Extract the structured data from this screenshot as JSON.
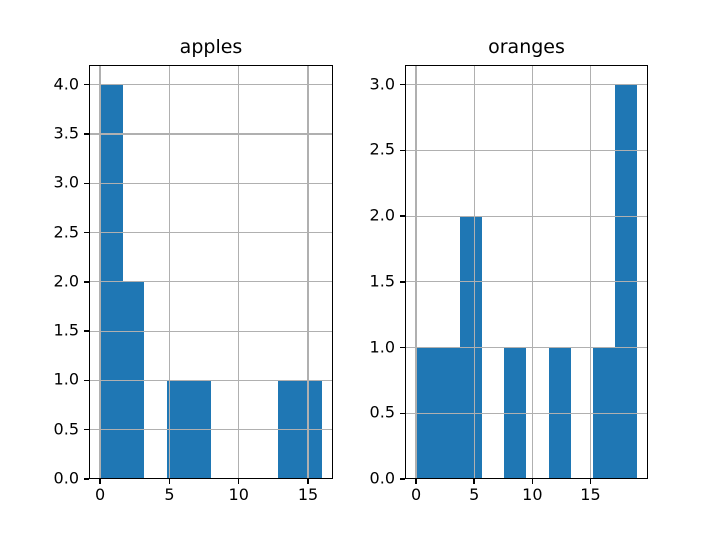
{
  "figure": {
    "background_color": "#ffffff",
    "text_color": "#000000"
  },
  "chart_data": [
    {
      "type": "bar",
      "subtype": "histogram",
      "title": "apples",
      "bin_edges": [
        0,
        1.6,
        3.2,
        4.8,
        6.4,
        8.0,
        9.6,
        11.2,
        12.8,
        14.4,
        16.0
      ],
      "counts": [
        4,
        2,
        0,
        1,
        1,
        0,
        0,
        0,
        1,
        1
      ],
      "xlim": [
        -0.8,
        16.8
      ],
      "ylim": [
        0,
        4.2
      ],
      "xticks": [
        0,
        5,
        10,
        15
      ],
      "xtick_labels": [
        "0",
        "5",
        "10",
        "15"
      ],
      "yticks": [
        0,
        0.5,
        1,
        1.5,
        2,
        2.5,
        3,
        3.5,
        4
      ],
      "ytick_labels": [
        "0.0",
        "0.5",
        "1.0",
        "1.5",
        "2.0",
        "2.5",
        "3.0",
        "3.5",
        "4.0"
      ],
      "grid": true,
      "grid_over_bars": true,
      "bar_color": "#1f77b4",
      "grid_color": "#b0b0b0",
      "spine_color": "#000000",
      "xlabel": "",
      "ylabel": ""
    },
    {
      "type": "bar",
      "subtype": "histogram",
      "title": "oranges",
      "bin_edges": [
        0,
        1.9,
        3.8,
        5.7,
        7.6,
        9.5,
        11.4,
        13.3,
        15.2,
        17.1,
        19.0
      ],
      "counts": [
        1,
        1,
        2,
        0,
        1,
        0,
        1,
        0,
        1,
        3
      ],
      "xlim": [
        -0.95,
        19.95
      ],
      "ylim": [
        0,
        3.15
      ],
      "xticks": [
        0,
        5,
        10,
        15
      ],
      "xtick_labels": [
        "0",
        "5",
        "10",
        "15"
      ],
      "yticks": [
        0,
        0.5,
        1,
        1.5,
        2,
        2.5,
        3
      ],
      "ytick_labels": [
        "0.0",
        "0.5",
        "1.0",
        "1.5",
        "2.0",
        "2.5",
        "3.0"
      ],
      "grid": true,
      "grid_over_bars": true,
      "bar_color": "#1f77b4",
      "grid_color": "#b0b0b0",
      "spine_color": "#000000",
      "xlabel": "",
      "ylabel": ""
    }
  ]
}
